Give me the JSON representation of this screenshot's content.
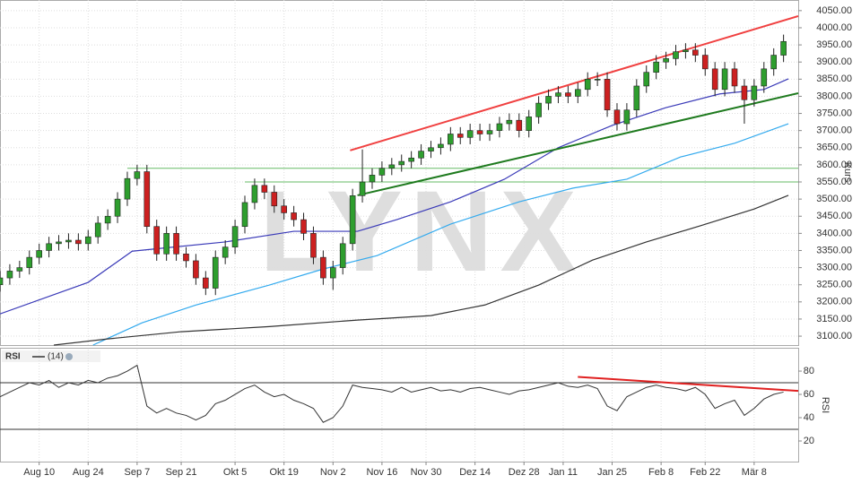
{
  "chart_data": [
    {
      "type": "candlestick",
      "axis_label": "Kurs",
      "watermark": "LYNX",
      "xlim": [
        0,
        163
      ],
      "ylim": [
        3074,
        4081
      ],
      "yticks": [
        {
          "value": 3100,
          "label": "3100.00"
        },
        {
          "value": 3150,
          "label": "3150.00"
        },
        {
          "value": 3200,
          "label": "3200.00"
        },
        {
          "value": 3250,
          "label": "3250.00"
        },
        {
          "value": 3300,
          "label": "3300.00"
        },
        {
          "value": 3350,
          "label": "3350.00"
        },
        {
          "value": 3400,
          "label": "3400.00"
        },
        {
          "value": 3450,
          "label": "3450.00"
        },
        {
          "value": 3500,
          "label": "3500.00"
        },
        {
          "value": 3550,
          "label": "3550.00"
        },
        {
          "value": 3600,
          "label": "3600.00"
        },
        {
          "value": 3650,
          "label": "3650.00"
        },
        {
          "value": 3700,
          "label": "3700.00"
        },
        {
          "value": 3750,
          "label": "3750.00"
        },
        {
          "value": 3800,
          "label": "3800.00"
        },
        {
          "value": 3850,
          "label": "3850.00"
        },
        {
          "value": 3900,
          "label": "3900.00"
        },
        {
          "value": 3950,
          "label": "3950.00"
        },
        {
          "value": 4000,
          "label": "4000.00"
        },
        {
          "value": 4050,
          "label": "4050.00"
        }
      ],
      "grid": true,
      "up_color": "#2e9e2e",
      "down_color": "#cc2020",
      "candles": {
        "x": [
          0,
          2,
          4,
          6,
          8,
          10,
          12,
          14,
          16,
          18,
          20,
          22,
          24,
          26,
          28,
          30,
          32,
          34,
          36,
          38,
          40,
          42,
          44,
          46,
          48,
          50,
          52,
          54,
          56,
          58,
          60,
          62,
          64,
          66,
          68,
          70,
          72,
          74,
          76,
          78,
          80,
          82,
          84,
          86,
          88,
          90,
          92,
          94,
          96,
          98,
          100,
          102,
          104,
          106,
          108,
          110,
          112,
          114,
          116,
          118,
          120,
          122,
          124,
          126,
          128,
          130,
          132,
          134,
          136,
          138,
          140,
          142,
          144,
          146,
          148,
          150,
          152,
          154,
          156,
          158,
          160
        ],
        "open": [
          3250,
          3270,
          3290,
          3300,
          3330,
          3350,
          3370,
          3375,
          3380,
          3370,
          3390,
          3430,
          3450,
          3500,
          3560,
          3580,
          3420,
          3340,
          3400,
          3340,
          3320,
          3270,
          3240,
          3330,
          3360,
          3420,
          3490,
          3540,
          3520,
          3480,
          3460,
          3440,
          3400,
          3330,
          3270,
          3300,
          3370,
          3510,
          3550,
          3570,
          3590,
          3600,
          3610,
          3620,
          3640,
          3650,
          3660,
          3690,
          3680,
          3700,
          3690,
          3700,
          3720,
          3730,
          3700,
          3740,
          3780,
          3800,
          3810,
          3800,
          3820,
          3850,
          3850,
          3760,
          3720,
          3760,
          3830,
          3870,
          3900,
          3910,
          3930,
          3935,
          3920,
          3880,
          3820,
          3880,
          3830,
          3790,
          3830,
          3880,
          3920
        ],
        "high": [
          3290,
          3310,
          3320,
          3350,
          3370,
          3390,
          3395,
          3400,
          3400,
          3410,
          3450,
          3470,
          3520,
          3580,
          3600,
          3600,
          3440,
          3420,
          3420,
          3360,
          3340,
          3290,
          3350,
          3380,
          3440,
          3510,
          3560,
          3560,
          3540,
          3500,
          3480,
          3460,
          3420,
          3350,
          3320,
          3390,
          3530,
          3645,
          3590,
          3610,
          3620,
          3630,
          3640,
          3660,
          3670,
          3680,
          3710,
          3710,
          3720,
          3720,
          3720,
          3740,
          3750,
          3750,
          3760,
          3800,
          3820,
          3830,
          3830,
          3840,
          3870,
          3870,
          3870,
          3780,
          3780,
          3850,
          3890,
          3920,
          3930,
          3950,
          3955,
          3955,
          3940,
          3900,
          3900,
          3900,
          3850,
          3850,
          3900,
          3940,
          3980
        ],
        "low": [
          3230,
          3250,
          3270,
          3280,
          3310,
          3330,
          3350,
          3355,
          3350,
          3350,
          3370,
          3410,
          3430,
          3480,
          3540,
          3400,
          3320,
          3320,
          3320,
          3300,
          3250,
          3220,
          3220,
          3310,
          3340,
          3400,
          3470,
          3500,
          3460,
          3440,
          3420,
          3380,
          3310,
          3250,
          3235,
          3280,
          3350,
          3490,
          3530,
          3550,
          3570,
          3580,
          3590,
          3600,
          3620,
          3630,
          3640,
          3660,
          3660,
          3670,
          3670,
          3680,
          3700,
          3680,
          3680,
          3720,
          3760,
          3780,
          3780,
          3780,
          3800,
          3830,
          3740,
          3700,
          3700,
          3740,
          3810,
          3850,
          3880,
          3890,
          3910,
          3900,
          3860,
          3800,
          3800,
          3810,
          3720,
          3770,
          3810,
          3860,
          3900
        ],
        "close": [
          3270,
          3290,
          3300,
          3330,
          3350,
          3370,
          3375,
          3380,
          3370,
          3390,
          3430,
          3450,
          3500,
          3560,
          3580,
          3420,
          3340,
          3400,
          3340,
          3320,
          3270,
          3240,
          3330,
          3360,
          3420,
          3490,
          3540,
          3520,
          3480,
          3460,
          3440,
          3400,
          3330,
          3270,
          3300,
          3370,
          3510,
          3550,
          3570,
          3590,
          3600,
          3610,
          3620,
          3640,
          3650,
          3660,
          3690,
          3680,
          3700,
          3690,
          3700,
          3720,
          3730,
          3700,
          3740,
          3780,
          3800,
          3810,
          3800,
          3820,
          3850,
          3850,
          3760,
          3720,
          3760,
          3830,
          3870,
          3900,
          3910,
          3930,
          3935,
          3920,
          3880,
          3820,
          3880,
          3830,
          3790,
          3830,
          3880,
          3920,
          3960
        ]
      },
      "series": [
        {
          "color": "#3a3ab8",
          "x": [
            0,
            18,
            27,
            46,
            60,
            73,
            81,
            92,
            103,
            114,
            125,
            136,
            147,
            156,
            161
          ],
          "values": [
            3165,
            3257,
            3348,
            3375,
            3406,
            3406,
            3440,
            3492,
            3558,
            3650,
            3715,
            3767,
            3807,
            3820,
            3851
          ]
        },
        {
          "color": "#33aaee",
          "x": [
            19,
            29,
            40,
            55,
            66,
            77,
            92,
            106,
            117,
            128,
            139,
            150,
            161
          ],
          "values": [
            3074,
            3139,
            3191,
            3249,
            3296,
            3335,
            3427,
            3492,
            3532,
            3558,
            3623,
            3663,
            3720
          ]
        },
        {
          "color": "#333333",
          "x": [
            11,
            22,
            37,
            55,
            73,
            88,
            99,
            110,
            121,
            132,
            143,
            154,
            161
          ],
          "values": [
            3074,
            3092,
            3113,
            3128,
            3147,
            3160,
            3191,
            3249,
            3322,
            3375,
            3422,
            3471,
            3511
          ]
        }
      ],
      "hlines": [
        {
          "color": "#66bb66",
          "x": [
            26,
            163
          ],
          "value": 3590
        },
        {
          "color": "#66bb66",
          "x": [
            50,
            163
          ],
          "value": 3550
        }
      ],
      "trendlines": [
        {
          "color": "#f04040",
          "x": [
            71.5,
            163
          ],
          "y": [
            3642,
            4034
          ]
        },
        {
          "color": "#1e7a1e",
          "x": [
            73,
            163
          ],
          "y": [
            3511,
            3809
          ]
        }
      ]
    },
    {
      "type": "line",
      "title": "RSI",
      "legend": "(14)",
      "axis_label": "RSI",
      "xlim": [
        0,
        163
      ],
      "ylim": [
        2.3,
        98.5
      ],
      "yticks": [
        20,
        40,
        60,
        80
      ],
      "xticks": [
        {
          "value": 8,
          "label": "Aug 10"
        },
        {
          "value": 18,
          "label": "Aug 24"
        },
        {
          "value": 28,
          "label": "Sep 7"
        },
        {
          "value": 37,
          "label": "Sep 21"
        },
        {
          "value": 48,
          "label": "Okt 5"
        },
        {
          "value": 58,
          "label": "Okt 19"
        },
        {
          "value": 68,
          "label": "Nov 2"
        },
        {
          "value": 78,
          "label": "Nov 16"
        },
        {
          "value": 87,
          "label": "Nov 30"
        },
        {
          "value": 97,
          "label": "Dez 14"
        },
        {
          "value": 107,
          "label": "Dez 28"
        },
        {
          "value": 115,
          "label": "Jan 11"
        },
        {
          "value": 125,
          "label": "Jan 25"
        },
        {
          "value": 135,
          "label": "Feb 8"
        },
        {
          "value": 144,
          "label": "Feb 22"
        },
        {
          "value": 154,
          "label": "Mär 8"
        }
      ],
      "hlines": [
        {
          "color": "#333333",
          "value": 70
        },
        {
          "color": "#333333",
          "value": 30
        }
      ],
      "color": "#333333",
      "x": [
        0,
        2,
        4,
        6,
        8,
        10,
        12,
        14,
        16,
        18,
        20,
        22,
        24,
        26,
        28,
        30,
        32,
        34,
        36,
        38,
        40,
        42,
        44,
        46,
        48,
        50,
        52,
        54,
        56,
        58,
        60,
        62,
        64,
        66,
        68,
        70,
        72,
        74,
        76,
        78,
        80,
        82,
        84,
        86,
        88,
        90,
        92,
        94,
        96,
        98,
        100,
        102,
        104,
        106,
        108,
        110,
        112,
        114,
        116,
        118,
        120,
        122,
        124,
        126,
        128,
        130,
        132,
        134,
        136,
        138,
        140,
        142,
        144,
        146,
        148,
        150,
        152,
        154,
        156,
        158,
        160
      ],
      "values": [
        58,
        62,
        66,
        70,
        68,
        72,
        66,
        70,
        68,
        72,
        70,
        74,
        76,
        80,
        85,
        50,
        44,
        48,
        44,
        42,
        38,
        42,
        52,
        55,
        60,
        65,
        68,
        62,
        58,
        60,
        55,
        52,
        48,
        36,
        40,
        50,
        68,
        66,
        65,
        64,
        62,
        66,
        62,
        64,
        66,
        63,
        64,
        62,
        65,
        66,
        64,
        62,
        60,
        63,
        64,
        66,
        68,
        70,
        67,
        66,
        68,
        65,
        50,
        46,
        58,
        62,
        66,
        68,
        66,
        65,
        63,
        66,
        60,
        48,
        52,
        55,
        42,
        48,
        56,
        60,
        62
      ],
      "trendlines": [
        {
          "color": "#e02020",
          "x": [
            118,
            163
          ],
          "y": [
            75,
            63
          ]
        }
      ]
    }
  ]
}
